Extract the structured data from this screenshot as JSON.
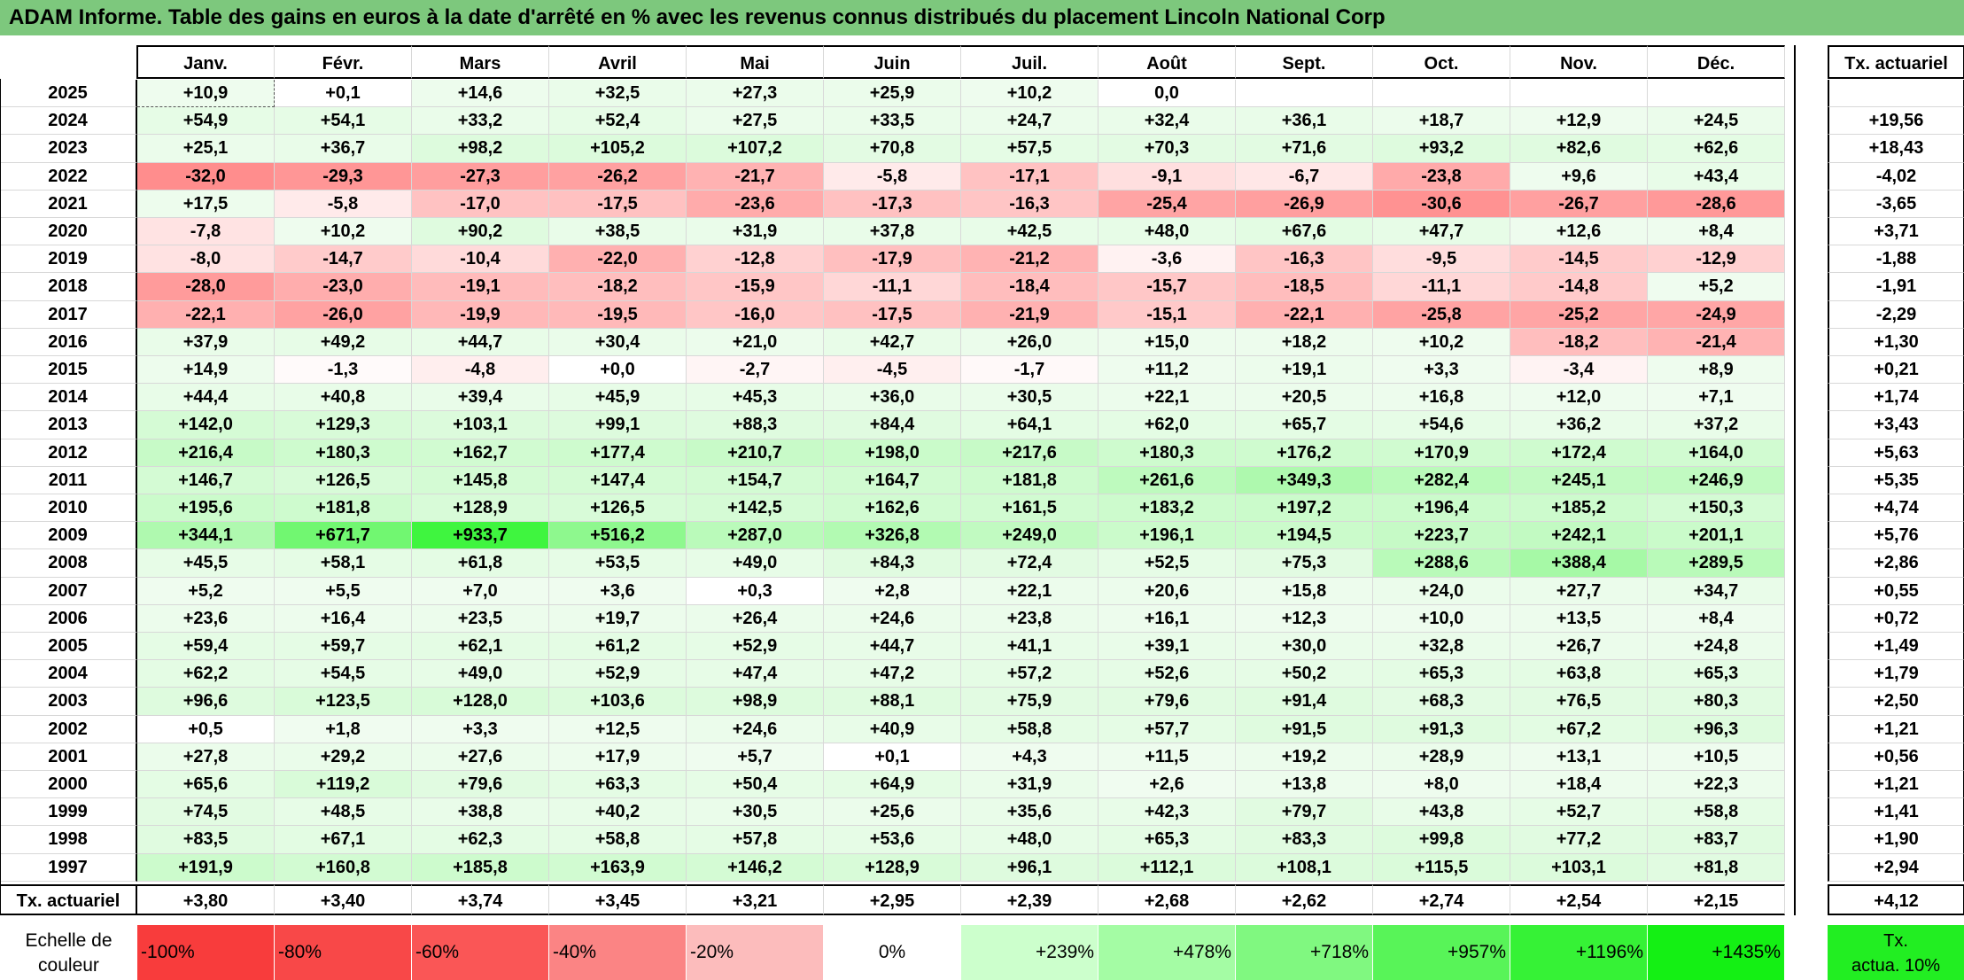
{
  "title": "ADAM Informe. Table des gains en euros à la date d'arrêté en % avec les revenus connus distribués du placement Lincoln National Corp",
  "months": [
    "Janv.",
    "Févr.",
    "Mars",
    "Avril",
    "Mai",
    "Juin",
    "Juil.",
    "Août",
    "Sept.",
    "Oct.",
    "Nov.",
    "Déc."
  ],
  "actuarial_header": "Tx. actuariel",
  "rows": [
    {
      "year": "2025",
      "values": [
        "+10,9",
        "+0,1",
        "+14,6",
        "+32,5",
        "+27,3",
        "+25,9",
        "+10,2",
        "0,0",
        "",
        "",
        "",
        ""
      ],
      "actuarial": ""
    },
    {
      "year": "2024",
      "values": [
        "+54,9",
        "+54,1",
        "+33,2",
        "+52,4",
        "+27,5",
        "+33,5",
        "+24,7",
        "+32,4",
        "+36,1",
        "+18,7",
        "+12,9",
        "+24,5"
      ],
      "actuarial": "+19,56"
    },
    {
      "year": "2023",
      "values": [
        "+25,1",
        "+36,7",
        "+98,2",
        "+105,2",
        "+107,2",
        "+70,8",
        "+57,5",
        "+70,3",
        "+71,6",
        "+93,2",
        "+82,6",
        "+62,6"
      ],
      "actuarial": "+18,43"
    },
    {
      "year": "2022",
      "values": [
        "-32,0",
        "-29,3",
        "-27,3",
        "-26,2",
        "-21,7",
        "-5,8",
        "-17,1",
        "-9,1",
        "-6,7",
        "-23,8",
        "+9,6",
        "+43,4"
      ],
      "actuarial": "-4,02"
    },
    {
      "year": "2021",
      "values": [
        "+17,5",
        "-5,8",
        "-17,0",
        "-17,5",
        "-23,6",
        "-17,3",
        "-16,3",
        "-25,4",
        "-26,9",
        "-30,6",
        "-26,7",
        "-28,6"
      ],
      "actuarial": "-3,65"
    },
    {
      "year": "2020",
      "values": [
        "-7,8",
        "+10,2",
        "+90,2",
        "+38,5",
        "+31,9",
        "+37,8",
        "+42,5",
        "+48,0",
        "+67,6",
        "+47,7",
        "+12,6",
        "+8,4"
      ],
      "actuarial": "+3,71"
    },
    {
      "year": "2019",
      "values": [
        "-8,0",
        "-14,7",
        "-10,4",
        "-22,0",
        "-12,8",
        "-17,9",
        "-21,2",
        "-3,6",
        "-16,3",
        "-9,5",
        "-14,5",
        "-12,9"
      ],
      "actuarial": "-1,88"
    },
    {
      "year": "2018",
      "values": [
        "-28,0",
        "-23,0",
        "-19,1",
        "-18,2",
        "-15,9",
        "-11,1",
        "-18,4",
        "-15,7",
        "-18,5",
        "-11,1",
        "-14,8",
        "+5,2"
      ],
      "actuarial": "-1,91"
    },
    {
      "year": "2017",
      "values": [
        "-22,1",
        "-26,0",
        "-19,9",
        "-19,5",
        "-16,0",
        "-17,5",
        "-21,9",
        "-15,1",
        "-22,1",
        "-25,8",
        "-25,2",
        "-24,9"
      ],
      "actuarial": "-2,29"
    },
    {
      "year": "2016",
      "values": [
        "+37,9",
        "+49,2",
        "+44,7",
        "+30,4",
        "+21,0",
        "+42,7",
        "+26,0",
        "+15,0",
        "+18,2",
        "+10,2",
        "-18,2",
        "-21,4"
      ],
      "actuarial": "+1,30"
    },
    {
      "year": "2015",
      "values": [
        "+14,9",
        "-1,3",
        "-4,8",
        "+0,0",
        "-2,7",
        "-4,5",
        "-1,7",
        "+11,2",
        "+19,1",
        "+3,3",
        "-3,4",
        "+8,9"
      ],
      "actuarial": "+0,21"
    },
    {
      "year": "2014",
      "values": [
        "+44,4",
        "+40,8",
        "+39,4",
        "+45,9",
        "+45,3",
        "+36,0",
        "+30,5",
        "+22,1",
        "+20,5",
        "+16,8",
        "+12,0",
        "+7,1"
      ],
      "actuarial": "+1,74"
    },
    {
      "year": "2013",
      "values": [
        "+142,0",
        "+129,3",
        "+103,1",
        "+99,1",
        "+88,3",
        "+84,4",
        "+64,1",
        "+62,0",
        "+65,7",
        "+54,6",
        "+36,2",
        "+37,2"
      ],
      "actuarial": "+3,43"
    },
    {
      "year": "2012",
      "values": [
        "+216,4",
        "+180,3",
        "+162,7",
        "+177,4",
        "+210,7",
        "+198,0",
        "+217,6",
        "+180,3",
        "+176,2",
        "+170,9",
        "+172,4",
        "+164,0"
      ],
      "actuarial": "+5,63"
    },
    {
      "year": "2011",
      "values": [
        "+146,7",
        "+126,5",
        "+145,8",
        "+147,4",
        "+154,7",
        "+164,7",
        "+181,8",
        "+261,6",
        "+349,3",
        "+282,4",
        "+245,1",
        "+246,9"
      ],
      "actuarial": "+5,35"
    },
    {
      "year": "2010",
      "values": [
        "+195,6",
        "+181,8",
        "+128,9",
        "+126,5",
        "+142,5",
        "+162,6",
        "+161,5",
        "+183,2",
        "+197,2",
        "+196,4",
        "+185,2",
        "+150,3"
      ],
      "actuarial": "+4,74"
    },
    {
      "year": "2009",
      "values": [
        "+344,1",
        "+671,7",
        "+933,7",
        "+516,2",
        "+287,0",
        "+326,8",
        "+249,0",
        "+196,1",
        "+194,5",
        "+223,7",
        "+242,1",
        "+201,1"
      ],
      "actuarial": "+5,76"
    },
    {
      "year": "2008",
      "values": [
        "+45,5",
        "+58,1",
        "+61,8",
        "+53,5",
        "+49,0",
        "+84,3",
        "+72,4",
        "+52,5",
        "+75,3",
        "+288,6",
        "+388,4",
        "+289,5"
      ],
      "actuarial": "+2,86"
    },
    {
      "year": "2007",
      "values": [
        "+5,2",
        "+5,5",
        "+7,0",
        "+3,6",
        "+0,3",
        "+2,8",
        "+22,1",
        "+20,6",
        "+15,8",
        "+24,0",
        "+27,7",
        "+34,7"
      ],
      "actuarial": "+0,55"
    },
    {
      "year": "2006",
      "values": [
        "+23,6",
        "+16,4",
        "+23,5",
        "+19,7",
        "+26,4",
        "+24,6",
        "+23,8",
        "+16,1",
        "+12,3",
        "+10,0",
        "+13,5",
        "+8,4"
      ],
      "actuarial": "+0,72"
    },
    {
      "year": "2005",
      "values": [
        "+59,4",
        "+59,7",
        "+62,1",
        "+61,2",
        "+52,9",
        "+44,7",
        "+41,1",
        "+39,1",
        "+30,0",
        "+32,8",
        "+26,7",
        "+24,8"
      ],
      "actuarial": "+1,49"
    },
    {
      "year": "2004",
      "values": [
        "+62,2",
        "+54,5",
        "+49,0",
        "+52,9",
        "+47,4",
        "+47,2",
        "+57,2",
        "+52,6",
        "+50,2",
        "+65,3",
        "+63,8",
        "+65,3"
      ],
      "actuarial": "+1,79"
    },
    {
      "year": "2003",
      "values": [
        "+96,6",
        "+123,5",
        "+128,0",
        "+103,6",
        "+98,9",
        "+88,1",
        "+75,9",
        "+79,6",
        "+91,4",
        "+68,3",
        "+76,5",
        "+80,3"
      ],
      "actuarial": "+2,50"
    },
    {
      "year": "2002",
      "values": [
        "+0,5",
        "+1,8",
        "+3,3",
        "+12,5",
        "+24,6",
        "+40,9",
        "+58,8",
        "+57,7",
        "+91,5",
        "+91,3",
        "+67,2",
        "+96,3"
      ],
      "actuarial": "+1,21"
    },
    {
      "year": "2001",
      "values": [
        "+27,8",
        "+29,2",
        "+27,6",
        "+17,9",
        "+5,7",
        "+0,1",
        "+4,3",
        "+11,5",
        "+19,2",
        "+28,9",
        "+13,1",
        "+10,5"
      ],
      "actuarial": "+0,56"
    },
    {
      "year": "2000",
      "values": [
        "+65,6",
        "+119,2",
        "+79,6",
        "+63,3",
        "+50,4",
        "+64,9",
        "+31,9",
        "+2,6",
        "+13,8",
        "+8,0",
        "+18,4",
        "+22,3"
      ],
      "actuarial": "+1,21"
    },
    {
      "year": "1999",
      "values": [
        "+74,5",
        "+48,5",
        "+38,8",
        "+40,2",
        "+30,5",
        "+25,6",
        "+35,6",
        "+42,3",
        "+79,7",
        "+43,8",
        "+52,7",
        "+58,8"
      ],
      "actuarial": "+1,41"
    },
    {
      "year": "1998",
      "values": [
        "+83,5",
        "+67,1",
        "+62,3",
        "+58,8",
        "+57,8",
        "+53,6",
        "+48,0",
        "+65,3",
        "+83,3",
        "+99,8",
        "+77,2",
        "+83,7"
      ],
      "actuarial": "+1,90"
    },
    {
      "year": "1997",
      "values": [
        "+191,9",
        "+160,8",
        "+185,8",
        "+163,9",
        "+146,2",
        "+128,9",
        "+96,1",
        "+112,1",
        "+108,1",
        "+115,5",
        "+103,1",
        "+81,8"
      ],
      "actuarial": "+2,94"
    }
  ],
  "footer": {
    "label": "Tx. actuariel",
    "values": [
      "+3,80",
      "+3,40",
      "+3,74",
      "+3,45",
      "+3,21",
      "+2,95",
      "+2,39",
      "+2,68",
      "+2,62",
      "+2,74",
      "+2,54",
      "+2,15"
    ],
    "actuarial": "+4,12"
  },
  "legend": {
    "label_line1": "Echelle de",
    "label_line2": "couleur",
    "steps": [
      {
        "label": "-100%",
        "color": "#f83c3c",
        "align": "left"
      },
      {
        "label": "-80%",
        "color": "#f84848",
        "align": "left"
      },
      {
        "label": "-60%",
        "color": "#fa5656",
        "align": "left"
      },
      {
        "label": "-40%",
        "color": "#fb8484",
        "align": "left"
      },
      {
        "label": "-20%",
        "color": "#fcbcbc",
        "align": "left"
      },
      {
        "label": "0%",
        "color": "#ffffff",
        "align": "center"
      },
      {
        "label": "+239%",
        "color": "#ccffcc",
        "align": "right"
      },
      {
        "label": "+478%",
        "color": "#a4fca4",
        "align": "right"
      },
      {
        "label": "+718%",
        "color": "#80f880",
        "align": "right"
      },
      {
        "label": "+957%",
        "color": "#58f458",
        "align": "right"
      },
      {
        "label": "+1196%",
        "color": "#36f236",
        "align": "right"
      },
      {
        "label": "+1435%",
        "color": "#14f014",
        "align": "right"
      }
    ],
    "act_line1": "Tx.",
    "act_line2": "actua. 10%",
    "act_color": "#22ee22"
  }
}
